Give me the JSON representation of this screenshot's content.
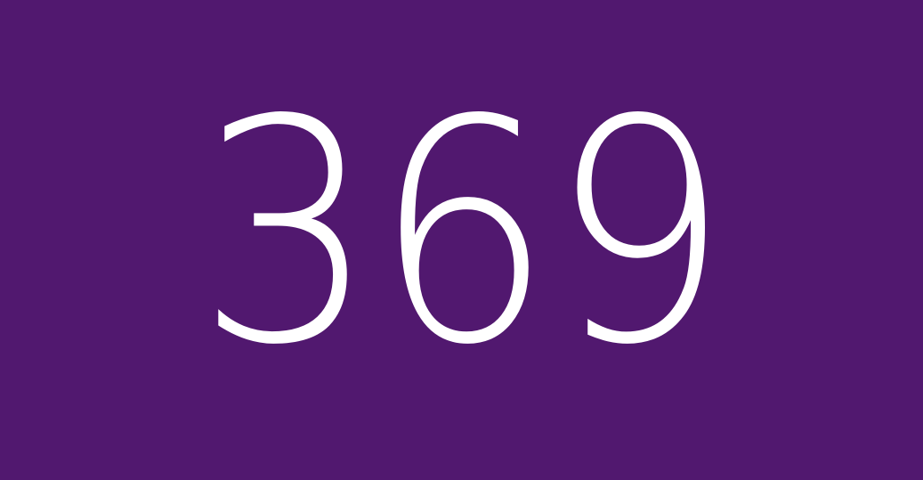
{
  "display": {
    "number": "369"
  },
  "colors": {
    "background": "#51186f",
    "text": "#ffffff"
  }
}
